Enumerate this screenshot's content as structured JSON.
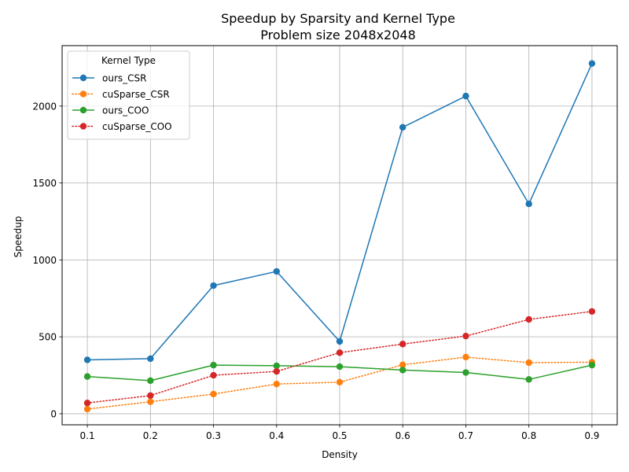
{
  "chart_data": {
    "type": "line",
    "title": "Speedup by Sparsity and Kernel Type",
    "subtitle": "Problem size 2048x2048",
    "xlabel": "Density",
    "ylabel": "Speedup",
    "x": [
      0.1,
      0.2,
      0.3,
      0.4,
      0.5,
      0.6,
      0.7,
      0.8,
      0.9
    ],
    "xticks": [
      "0.1",
      "0.2",
      "0.3",
      "0.4",
      "0.5",
      "0.6",
      "0.7",
      "0.8",
      "0.9"
    ],
    "yticks": [
      0,
      500,
      1000,
      1500,
      2000
    ],
    "xlim": [
      0.06,
      0.94
    ],
    "ylim": [
      -72,
      2393
    ],
    "grid": true,
    "legend": {
      "title": "Kernel Type",
      "placement": "top-left"
    },
    "series": [
      {
        "name": "ours_CSR",
        "color": "#1f77b4",
        "linestyle": "solid",
        "values": [
          350,
          358,
          833,
          925,
          470,
          1862,
          2065,
          1364,
          2277
        ]
      },
      {
        "name": "cuSparse_CSR",
        "color": "#ff7f0e",
        "linestyle": "dotted",
        "values": [
          30,
          78,
          128,
          193,
          205,
          318,
          368,
          332,
          335
        ]
      },
      {
        "name": "ours_COO",
        "color": "#2ca02c",
        "linestyle": "solid",
        "values": [
          242,
          215,
          316,
          312,
          306,
          284,
          268,
          223,
          316
        ]
      },
      {
        "name": "cuSparse_COO",
        "color": "#d62728",
        "linestyle": "dotted",
        "values": [
          70,
          118,
          250,
          275,
          397,
          453,
          505,
          613,
          665
        ]
      }
    ]
  }
}
